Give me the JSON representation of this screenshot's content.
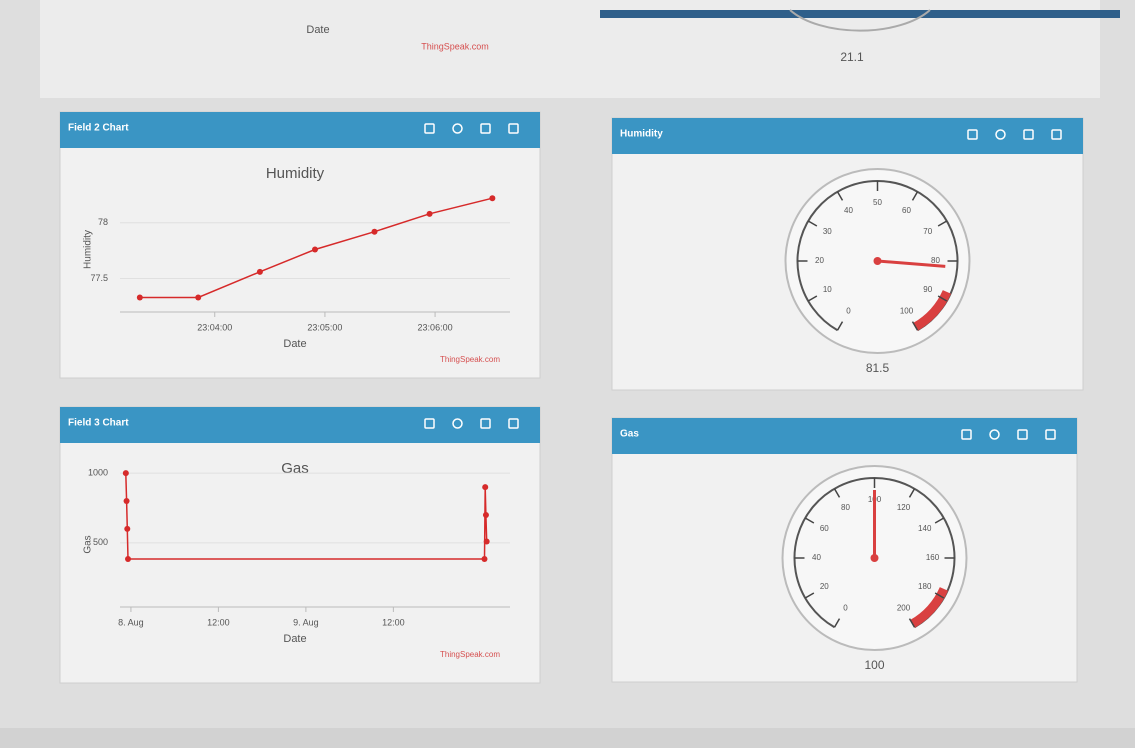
{
  "top": {
    "x_axis_label": "Date",
    "credit": "ThingSpeak.com",
    "gauge_value": "21.1"
  },
  "widgets": [
    {
      "title": "Field 2 Chart",
      "chart": {
        "type": "line",
        "title": "Humidity",
        "y_label": "Humidity",
        "x_label": "Date",
        "credit": "ThingSpeak.com",
        "color": "#d62a2a",
        "x": [
          3.32,
          3.85,
          4.41,
          4.91,
          5.45,
          5.95,
          6.52
        ],
        "values": [
          77.33,
          77.33,
          77.56,
          77.76,
          77.92,
          78.08,
          78.22
        ],
        "xlim": [
          3.14,
          6.68
        ],
        "ylim": [
          77.2,
          78.5
        ],
        "xticks": [
          {
            "value": 4,
            "label": "23:04:00"
          },
          {
            "value": 5,
            "label": "23:05:00"
          },
          {
            "value": 6,
            "label": "23:06:00"
          }
        ],
        "yticks": [
          77.5,
          78
        ]
      }
    },
    {
      "title": "Humidity",
      "gauge": {
        "min": 0,
        "max": 100,
        "ticks": [
          0,
          10,
          20,
          30,
          40,
          50,
          60,
          70,
          80,
          90,
          100
        ],
        "value": 81.5
      }
    },
    {
      "title": "Field 3 Chart",
      "chart": {
        "type": "line",
        "title": "Gas",
        "y_label": "Gas",
        "x_label": "Date",
        "credit": "ThingSpeak.com",
        "color": "#d62a2a",
        "x": [
          -0.7,
          -0.6,
          -0.5,
          -0.4,
          48.5,
          48.6,
          48.7,
          48.8
        ],
        "values": [
          1000,
          800,
          600,
          384,
          384,
          900,
          700,
          510
        ],
        "xlim": [
          -1.5,
          52
        ],
        "ylim": [
          40,
          1080
        ],
        "xticks": [
          {
            "value": 0,
            "label": "8. Aug"
          },
          {
            "value": 12,
            "label": "12:00"
          },
          {
            "value": 24,
            "label": "9. Aug"
          },
          {
            "value": 36,
            "label": "12:00"
          }
        ],
        "yticks": [
          500,
          1000
        ]
      }
    },
    {
      "title": "Gas",
      "gauge": {
        "min": 0,
        "max": 200,
        "ticks": [
          0,
          20,
          40,
          60,
          80,
          100,
          120,
          140,
          160,
          180,
          200
        ],
        "value": 100
      }
    }
  ]
}
